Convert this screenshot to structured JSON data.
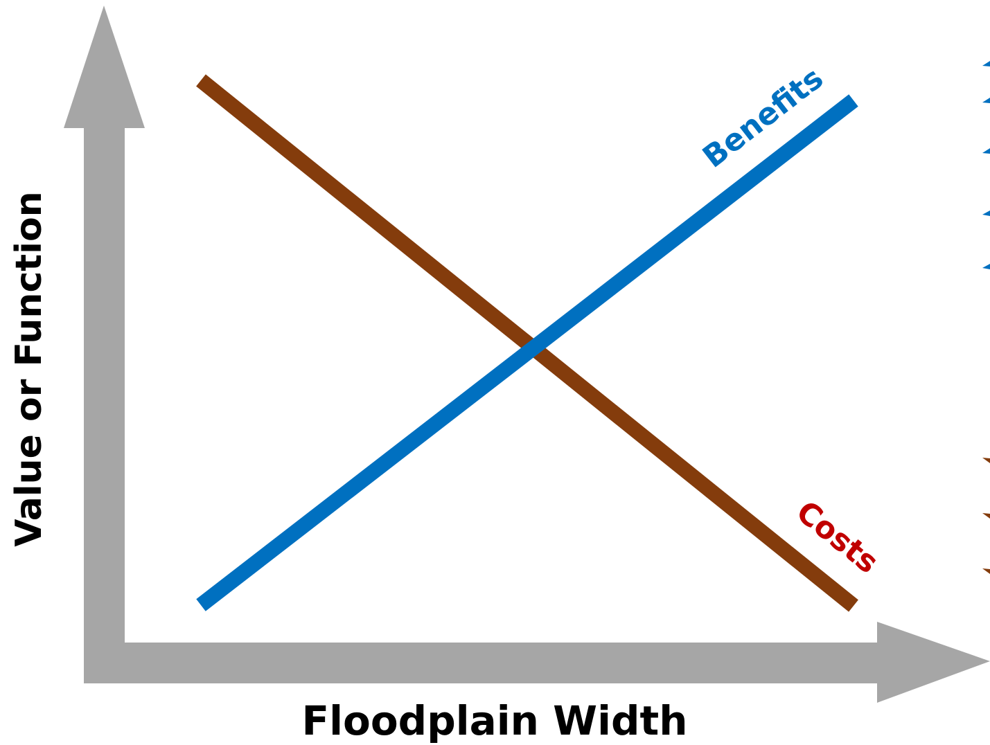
{
  "axes": {
    "x_label": "Floodplain Width",
    "y_label": "Value or Function"
  },
  "lines": [
    {
      "label": "Benefits"
    },
    {
      "label": "Costs"
    }
  ]
}
